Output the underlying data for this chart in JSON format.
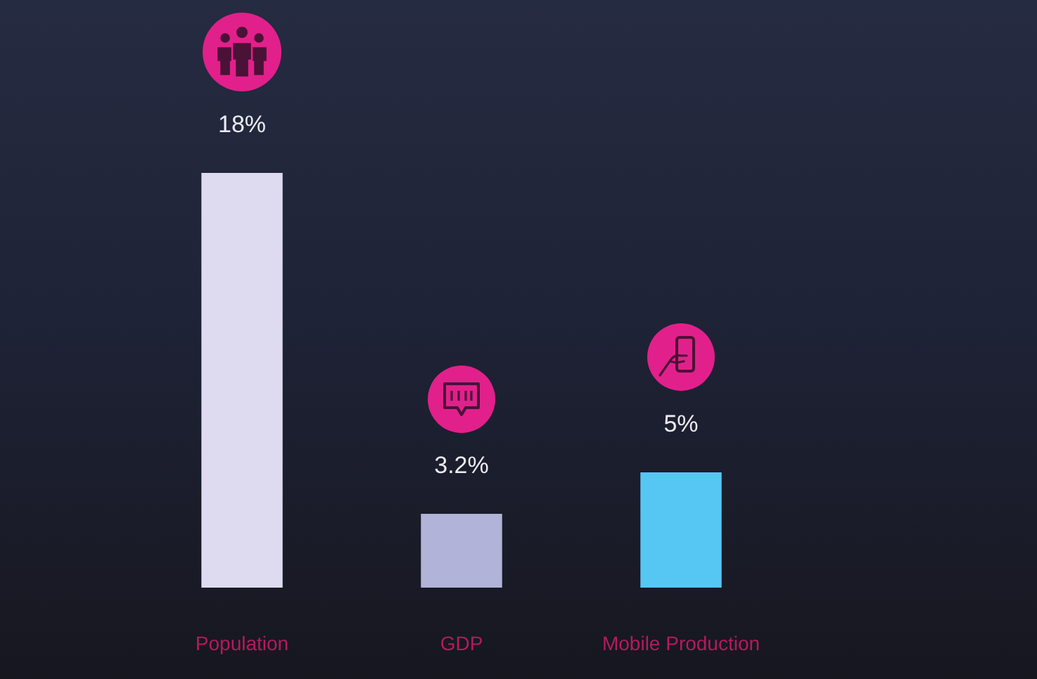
{
  "chart_data": {
    "type": "bar",
    "categories": [
      "Population",
      "GDP",
      "Mobile Production"
    ],
    "values": [
      18,
      3.2,
      5
    ],
    "colors": [
      "#dedbf0",
      "#b1b3d8",
      "#56c6f2"
    ],
    "value_labels": [
      "18%",
      "3.2%",
      "5%"
    ]
  }
}
